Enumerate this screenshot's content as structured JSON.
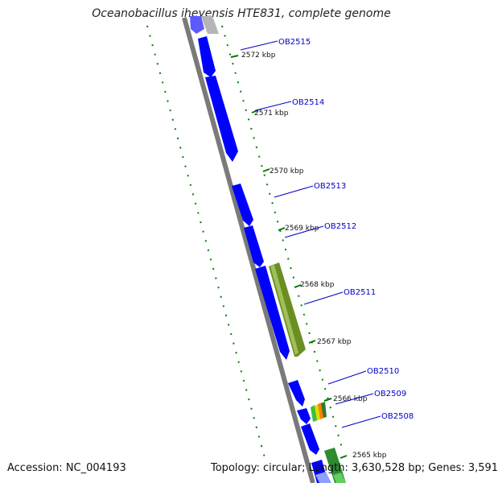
{
  "title": "Oceanobacillus iheyensis HTE831, complete genome",
  "footer": {
    "accession": "Accession: NC_004193",
    "summary": "Topology: circular; Length: 3,630,528 bp; Genes: 3,591"
  },
  "colors": {
    "backbone": "#7a7a7a",
    "gene_forward_strand": "#0000ff",
    "gene_label": "#0000cc",
    "label_line": "#0000cc",
    "kbp_tick": "#007a00",
    "rna_feature": "#6b8e23",
    "gc_dots": "#008000",
    "partial_gene": "#aaaaaa"
  },
  "genes": [
    {
      "label": "OB2515"
    },
    {
      "label": "OB2514"
    },
    {
      "label": "OB2513"
    },
    {
      "label": "OB2512"
    },
    {
      "label": "OB2511"
    },
    {
      "label": "OB2510"
    },
    {
      "label": "OB2509"
    },
    {
      "label": "OB2508"
    }
  ],
  "kbp_ticks": [
    {
      "label": "2572 kbp"
    },
    {
      "label": "2571 kbp"
    },
    {
      "label": "2570 kbp"
    },
    {
      "label": "2569 kbp"
    },
    {
      "label": "2568 kbp"
    },
    {
      "label": "2567 kbp"
    },
    {
      "label": "2566 kbp"
    },
    {
      "label": "2565 kbp"
    }
  ]
}
